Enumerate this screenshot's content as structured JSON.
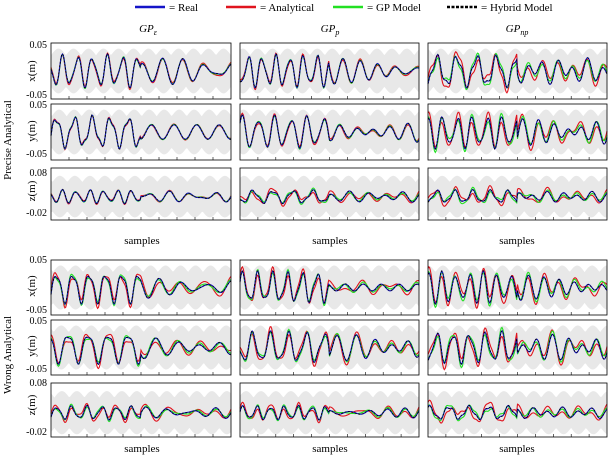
{
  "legend": [
    {
      "label": "= Real",
      "color": "#1414c8",
      "style": "solid"
    },
    {
      "label": "= Analytical",
      "color": "#e0141e",
      "style": "solid"
    },
    {
      "label": "= GP Model",
      "color": "#22e022",
      "style": "solid"
    },
    {
      "label": "= Hybrid Model",
      "color": "#000000",
      "style": "dashed"
    }
  ],
  "columns": [
    {
      "base": "GP",
      "sub": "ε"
    },
    {
      "base": "GP",
      "sub": "p"
    },
    {
      "base": "GP",
      "sub": "np"
    }
  ],
  "groups": [
    {
      "title": "Precise Analytical",
      "xlabel": "samples"
    },
    {
      "title": "Wrong Analytical",
      "xlabel": "samples"
    }
  ],
  "rows": [
    {
      "ylabel": "x(m)",
      "ytop": "0.05",
      "ybottom": "-0.05"
    },
    {
      "ylabel": "y(m)",
      "ytop": "0.05",
      "ybottom": "-0.05"
    },
    {
      "ylabel": "z(m)",
      "ytop": "0.08",
      "ybottom": "-0.02"
    }
  ],
  "chart_data": {
    "type": "line",
    "description_scope": "3x3 grid of trajectory panels per group (x, y, z position vs samples), two groups; grey band is GP uncertainty",
    "xlabel": "samples",
    "series": [
      {
        "name": "Real",
        "color": "#1414c8"
      },
      {
        "name": "Analytical",
        "color": "#e0141e"
      },
      {
        "name": "GP Model",
        "color": "#22e022"
      },
      {
        "name": "Hybrid Model",
        "color": "#000000"
      }
    ],
    "panels": [
      {
        "group": "Precise Analytical",
        "column": "GPε",
        "row": "x(m)",
        "ylim": [
          -0.05,
          0.05
        ],
        "analytical_deviation": 0.1,
        "gp_deviation": 0.04
      },
      {
        "group": "Precise Analytical",
        "column": "GPp",
        "row": "x(m)",
        "ylim": [
          -0.05,
          0.05
        ],
        "analytical_deviation": 0.1,
        "gp_deviation": 0.04
      },
      {
        "group": "Precise Analytical",
        "column": "GPnp",
        "row": "x(m)",
        "ylim": [
          -0.05,
          0.05
        ],
        "analytical_deviation": 0.35,
        "gp_deviation": 0.2
      },
      {
        "group": "Precise Analytical",
        "column": "GPε",
        "row": "y(m)",
        "ylim": [
          -0.05,
          0.05
        ],
        "analytical_deviation": 0.05,
        "gp_deviation": 0.03
      },
      {
        "group": "Precise Analytical",
        "column": "GPp",
        "row": "y(m)",
        "ylim": [
          -0.05,
          0.05
        ],
        "analytical_deviation": 0.1,
        "gp_deviation": 0.05
      },
      {
        "group": "Precise Analytical",
        "column": "GPnp",
        "row": "y(m)",
        "ylim": [
          -0.05,
          0.05
        ],
        "analytical_deviation": 0.35,
        "gp_deviation": 0.2
      },
      {
        "group": "Precise Analytical",
        "column": "GPε",
        "row": "z(m)",
        "ylim": [
          -0.02,
          0.08
        ],
        "analytical_deviation": 0.05,
        "gp_deviation": 0.03
      },
      {
        "group": "Precise Analytical",
        "column": "GPp",
        "row": "z(m)",
        "ylim": [
          -0.02,
          0.08
        ],
        "analytical_deviation": 0.2,
        "gp_deviation": 0.1
      },
      {
        "group": "Precise Analytical",
        "column": "GPnp",
        "row": "z(m)",
        "ylim": [
          -0.02,
          0.08
        ],
        "analytical_deviation": 0.25,
        "gp_deviation": 0.15
      },
      {
        "group": "Wrong Analytical",
        "column": "GPε",
        "row": "x(m)",
        "ylim": [
          -0.05,
          0.05
        ],
        "analytical_deviation": 0.25,
        "gp_deviation": 0.12
      },
      {
        "group": "Wrong Analytical",
        "column": "GPp",
        "row": "x(m)",
        "ylim": [
          -0.05,
          0.05
        ],
        "analytical_deviation": 0.25,
        "gp_deviation": 0.12
      },
      {
        "group": "Wrong Analytical",
        "column": "GPnp",
        "row": "x(m)",
        "ylim": [
          -0.05,
          0.05
        ],
        "analytical_deviation": 0.35,
        "gp_deviation": 0.2
      },
      {
        "group": "Wrong Analytical",
        "column": "GPε",
        "row": "y(m)",
        "ylim": [
          -0.05,
          0.05
        ],
        "analytical_deviation": 0.25,
        "gp_deviation": 0.12
      },
      {
        "group": "Wrong Analytical",
        "column": "GPp",
        "row": "y(m)",
        "ylim": [
          -0.05,
          0.05
        ],
        "analytical_deviation": 0.25,
        "gp_deviation": 0.12
      },
      {
        "group": "Wrong Analytical",
        "column": "GPnp",
        "row": "y(m)",
        "ylim": [
          -0.05,
          0.05
        ],
        "analytical_deviation": 0.35,
        "gp_deviation": 0.2
      },
      {
        "group": "Wrong Analytical",
        "column": "GPε",
        "row": "z(m)",
        "ylim": [
          -0.02,
          0.08
        ],
        "analytical_deviation": 0.2,
        "gp_deviation": 0.1
      },
      {
        "group": "Wrong Analytical",
        "column": "GPp",
        "row": "z(m)",
        "ylim": [
          -0.02,
          0.08
        ],
        "analytical_deviation": 0.2,
        "gp_deviation": 0.1
      },
      {
        "group": "Wrong Analytical",
        "column": "GPnp",
        "row": "z(m)",
        "ylim": [
          -0.02,
          0.08
        ],
        "analytical_deviation": 0.3,
        "gp_deviation": 0.15
      }
    ]
  }
}
